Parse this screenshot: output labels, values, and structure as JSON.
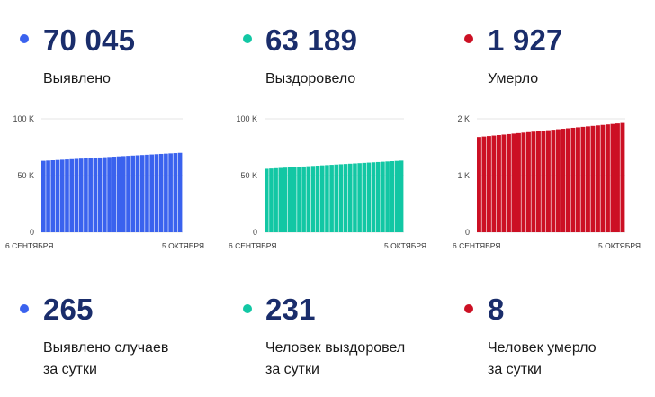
{
  "colors": {
    "blue": "#3a62ee",
    "teal": "#12c7a4",
    "red": "#cc1024",
    "number": "#1a2d6b"
  },
  "totals": [
    {
      "value": "70 045",
      "label": "Выявлено",
      "color": "#3a62ee"
    },
    {
      "value": "63 189",
      "label": "Выздоровело",
      "color": "#12c7a4"
    },
    {
      "value": "1 927",
      "label": "Умерло",
      "color": "#cc1024"
    }
  ],
  "daily": [
    {
      "value": "265",
      "label_line1": "Выявлено случаев",
      "label_line2": "за сутки",
      "color": "#3a62ee"
    },
    {
      "value": "231",
      "label_line1": "Человек выздоровел",
      "label_line2": "за сутки",
      "color": "#12c7a4"
    },
    {
      "value": "8",
      "label_line1": "Человек умерло",
      "label_line2": "за сутки",
      "color": "#cc1024"
    }
  ],
  "chart_data": [
    {
      "type": "bar",
      "series_color": "#3a62ee",
      "ylim": [
        0,
        100000
      ],
      "y_ticks": [
        0,
        50000,
        100000
      ],
      "y_tick_labels": [
        "0",
        "50 K",
        "100 K"
      ],
      "x_tick_labels": [
        "6 СЕНТЯБРЯ",
        "5 ОКТЯБРЯ"
      ],
      "num_bars": 30,
      "start_value": 63000,
      "end_value": 70045
    },
    {
      "type": "bar",
      "series_color": "#12c7a4",
      "ylim": [
        0,
        100000
      ],
      "y_ticks": [
        0,
        50000,
        100000
      ],
      "y_tick_labels": [
        "0",
        "50 K",
        "100 K"
      ],
      "x_tick_labels": [
        "6 СЕНТЯБРЯ",
        "5 ОКТЯБРЯ"
      ],
      "num_bars": 30,
      "start_value": 56000,
      "end_value": 63189
    },
    {
      "type": "bar",
      "series_color": "#cc1024",
      "ylim": [
        0,
        2000
      ],
      "y_ticks": [
        0,
        1000,
        2000
      ],
      "y_tick_labels": [
        "0",
        "1 K",
        "2 K"
      ],
      "x_tick_labels": [
        "6 СЕНТЯБРЯ",
        "5 ОКТЯБРЯ"
      ],
      "num_bars": 30,
      "start_value": 1680,
      "end_value": 1927
    }
  ]
}
